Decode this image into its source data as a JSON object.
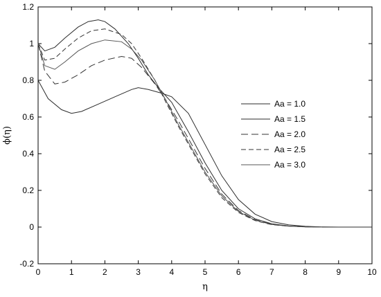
{
  "chart_data": {
    "type": "line",
    "title": "",
    "xlabel": "η",
    "ylabel": "ϕ(η)",
    "xlim": [
      0,
      10
    ],
    "ylim": [
      -0.2,
      1.2
    ],
    "xticks": [
      "0",
      "1",
      "2",
      "3",
      "4",
      "5",
      "6",
      "7",
      "8",
      "9",
      "10"
    ],
    "yticks": [
      "-0.2",
      "0",
      "0.2",
      "0.4",
      "0.6",
      "0.8",
      "1",
      "1.2"
    ],
    "grid": false,
    "legend_position": "right-middle",
    "series": [
      {
        "name": "Aa = 1.0",
        "color": "#2b2b2b",
        "dash": "",
        "x": [
          0,
          0.3,
          0.7,
          1.0,
          1.3,
          1.8,
          2.3,
          2.8,
          3.0,
          3.3,
          3.7,
          4.0,
          4.5,
          5.0,
          5.5,
          6.0,
          6.5,
          7.0,
          7.5,
          8.0,
          8.5,
          9.0,
          9.5,
          10.0
        ],
        "y": [
          0.8,
          0.7,
          0.64,
          0.62,
          0.63,
          0.67,
          0.71,
          0.75,
          0.76,
          0.75,
          0.73,
          0.71,
          0.62,
          0.45,
          0.28,
          0.15,
          0.07,
          0.03,
          0.012,
          0.004,
          0.001,
          0.0,
          0.0,
          0.0
        ]
      },
      {
        "name": "Aa = 1.5",
        "color": "#2b2b2b",
        "dash": "",
        "x": [
          0,
          0.2,
          0.5,
          0.8,
          1.2,
          1.5,
          1.8,
          2.0,
          2.3,
          2.7,
          3.0,
          3.3,
          3.6,
          4.0,
          4.5,
          5.0,
          5.5,
          6.0,
          6.5,
          7.0,
          7.5,
          8.0,
          8.5,
          9.0,
          9.5
        ],
        "y": [
          1.0,
          0.96,
          0.98,
          1.03,
          1.09,
          1.12,
          1.13,
          1.12,
          1.08,
          1.0,
          0.92,
          0.83,
          0.76,
          0.68,
          0.52,
          0.35,
          0.2,
          0.1,
          0.045,
          0.018,
          0.006,
          0.002,
          0.0,
          0.0,
          0.0
        ]
      },
      {
        "name": "Aa = 2.0",
        "color": "#333333",
        "dash": "10,5",
        "x": [
          0,
          0.2,
          0.5,
          0.8,
          1.2,
          1.6,
          2.0,
          2.5,
          2.8,
          3.1,
          3.5,
          3.8,
          4.2,
          4.6,
          5.0,
          5.5,
          6.0,
          6.5,
          7.0,
          7.5,
          8.0,
          8.5
        ],
        "y": [
          1.0,
          0.85,
          0.78,
          0.79,
          0.83,
          0.88,
          0.91,
          0.93,
          0.92,
          0.87,
          0.78,
          0.7,
          0.58,
          0.45,
          0.32,
          0.18,
          0.09,
          0.04,
          0.016,
          0.006,
          0.002,
          0.0
        ]
      },
      {
        "name": "Aa = 2.5",
        "color": "#333333",
        "dash": "7,4",
        "x": [
          0,
          0.2,
          0.5,
          0.8,
          1.2,
          1.6,
          2.0,
          2.5,
          2.8,
          3.1,
          3.5,
          3.8,
          4.2,
          4.6,
          5.0,
          5.5,
          6.0,
          6.5,
          7.0,
          7.5,
          8.0,
          8.5
        ],
        "y": [
          1.0,
          0.91,
          0.92,
          0.97,
          1.03,
          1.07,
          1.08,
          1.05,
          1.0,
          0.92,
          0.8,
          0.69,
          0.55,
          0.42,
          0.29,
          0.16,
          0.08,
          0.035,
          0.013,
          0.005,
          0.001,
          0.0
        ]
      },
      {
        "name": "Aa = 3.0",
        "color": "#555555",
        "dash": "",
        "x": [
          0,
          0.2,
          0.5,
          0.8,
          1.2,
          1.6,
          2.0,
          2.5,
          2.8,
          3.1,
          3.5,
          3.8,
          4.2,
          4.6,
          5.0,
          5.5,
          6.0,
          6.5,
          7.0,
          7.5,
          8.0,
          8.5
        ],
        "y": [
          1.0,
          0.88,
          0.86,
          0.9,
          0.96,
          1.0,
          1.02,
          1.01,
          0.97,
          0.91,
          0.8,
          0.7,
          0.56,
          0.43,
          0.3,
          0.17,
          0.085,
          0.037,
          0.014,
          0.005,
          0.001,
          0.0
        ]
      }
    ]
  }
}
